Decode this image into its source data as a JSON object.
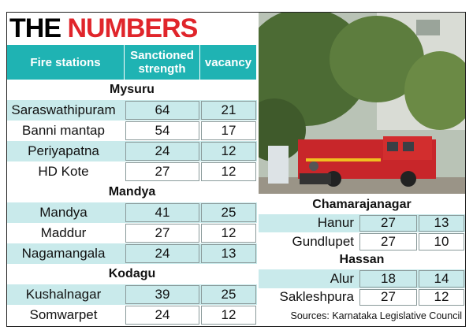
{
  "title": {
    "first": "THE",
    "second": "NUMBERS"
  },
  "table": {
    "headers": [
      "Fire stations",
      "Sanctioned strength",
      "vacancy"
    ],
    "groups": [
      {
        "name": "Mysuru",
        "rows": [
          [
            "Saraswathipuram",
            "64",
            "21"
          ],
          [
            "Banni mantap",
            "54",
            "17"
          ],
          [
            "Periyapatna",
            "24",
            "12"
          ],
          [
            "HD Kote",
            "27",
            "12"
          ]
        ]
      },
      {
        "name": "Mandya",
        "rows": [
          [
            "Mandya",
            "41",
            "25"
          ],
          [
            "Maddur",
            "27",
            "12"
          ],
          [
            "Nagamangala",
            "24",
            "13"
          ]
        ]
      },
      {
        "name": "Kodagu",
        "rows": [
          [
            "Kushalnagar",
            "39",
            "25"
          ],
          [
            "Somwarpet",
            "24",
            "12"
          ]
        ]
      }
    ]
  },
  "table2": {
    "groups": [
      {
        "name": "Chamarajanagar",
        "rows": [
          [
            "Hanur",
            "27",
            "13"
          ],
          [
            "Gundlupet",
            "27",
            "10"
          ]
        ]
      },
      {
        "name": "Hassan",
        "rows": [
          [
            "Alur",
            "18",
            "14"
          ],
          [
            "Sakleshpura",
            "27",
            "12"
          ]
        ]
      }
    ]
  },
  "source": "Sources: Karnataka Legislative Council"
}
